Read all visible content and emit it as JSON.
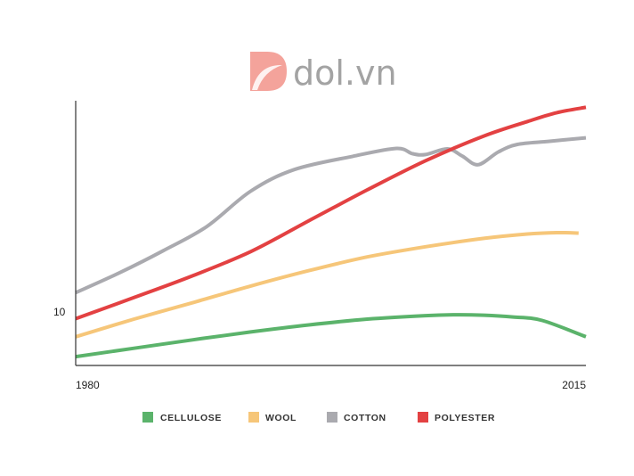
{
  "watermark": {
    "text": "dol.vn",
    "colors": {
      "mark": "#f4a39b",
      "text": "#a3a3a3"
    }
  },
  "chart_data": {
    "type": "line",
    "title": "",
    "xlabel": "",
    "ylabel": "",
    "x_tick_labels": [
      "1980",
      "2015"
    ],
    "y_tick_labels": [
      "10"
    ],
    "xlim": [
      1980,
      2015
    ],
    "ylim": [
      0,
      60
    ],
    "grid": false,
    "legend_position": "bottom",
    "series": [
      {
        "name": "CELLULOSE",
        "color": "#5bb36b",
        "points": [
          [
            1980,
            2
          ],
          [
            1984,
            3.9
          ],
          [
            1988,
            5.8
          ],
          [
            1992,
            7.6
          ],
          [
            1996,
            9.2
          ],
          [
            2000,
            10.5
          ],
          [
            2004,
            11.3
          ],
          [
            2006,
            11.5
          ],
          [
            2008,
            11.4
          ],
          [
            2010,
            11
          ],
          [
            2012,
            10.2
          ],
          [
            2015,
            6.5
          ]
        ]
      },
      {
        "name": "WOOL",
        "color": "#f6c679",
        "points": [
          [
            1980,
            6.5
          ],
          [
            1984,
            10.5
          ],
          [
            1988,
            14.2
          ],
          [
            1992,
            18
          ],
          [
            1996,
            21.5
          ],
          [
            2000,
            24.6
          ],
          [
            2004,
            26.9
          ],
          [
            2008,
            28.8
          ],
          [
            2011,
            29.8
          ],
          [
            2013,
            30.1
          ],
          [
            2014.5,
            30
          ]
        ]
      },
      {
        "name": "COTTON",
        "color": "#aaaaaf",
        "points": [
          [
            1980,
            16.5
          ],
          [
            1983,
            21
          ],
          [
            1986,
            26
          ],
          [
            1989,
            31.5
          ],
          [
            1992,
            39.5
          ],
          [
            1995,
            44.4
          ],
          [
            1999,
            47.4
          ],
          [
            2002,
            49.2
          ],
          [
            2003.1,
            48
          ],
          [
            2004,
            47.8
          ],
          [
            2005.5,
            49.1
          ],
          [
            2006.5,
            47.5
          ],
          [
            2007.6,
            45.5
          ],
          [
            2009,
            48.4
          ],
          [
            2010.3,
            50.1
          ],
          [
            2012.5,
            50.8
          ],
          [
            2015,
            51.6
          ]
        ]
      },
      {
        "name": "POLYESTER",
        "color": "#e34142",
        "points": [
          [
            1980,
            10.6
          ],
          [
            1984,
            15.4
          ],
          [
            1988,
            20.3
          ],
          [
            1992,
            25.8
          ],
          [
            1996,
            32.8
          ],
          [
            2000,
            39.8
          ],
          [
            2004,
            46.4
          ],
          [
            2008,
            52
          ],
          [
            2011,
            55.3
          ],
          [
            2013,
            57.3
          ],
          [
            2015,
            58.5
          ]
        ]
      }
    ]
  }
}
